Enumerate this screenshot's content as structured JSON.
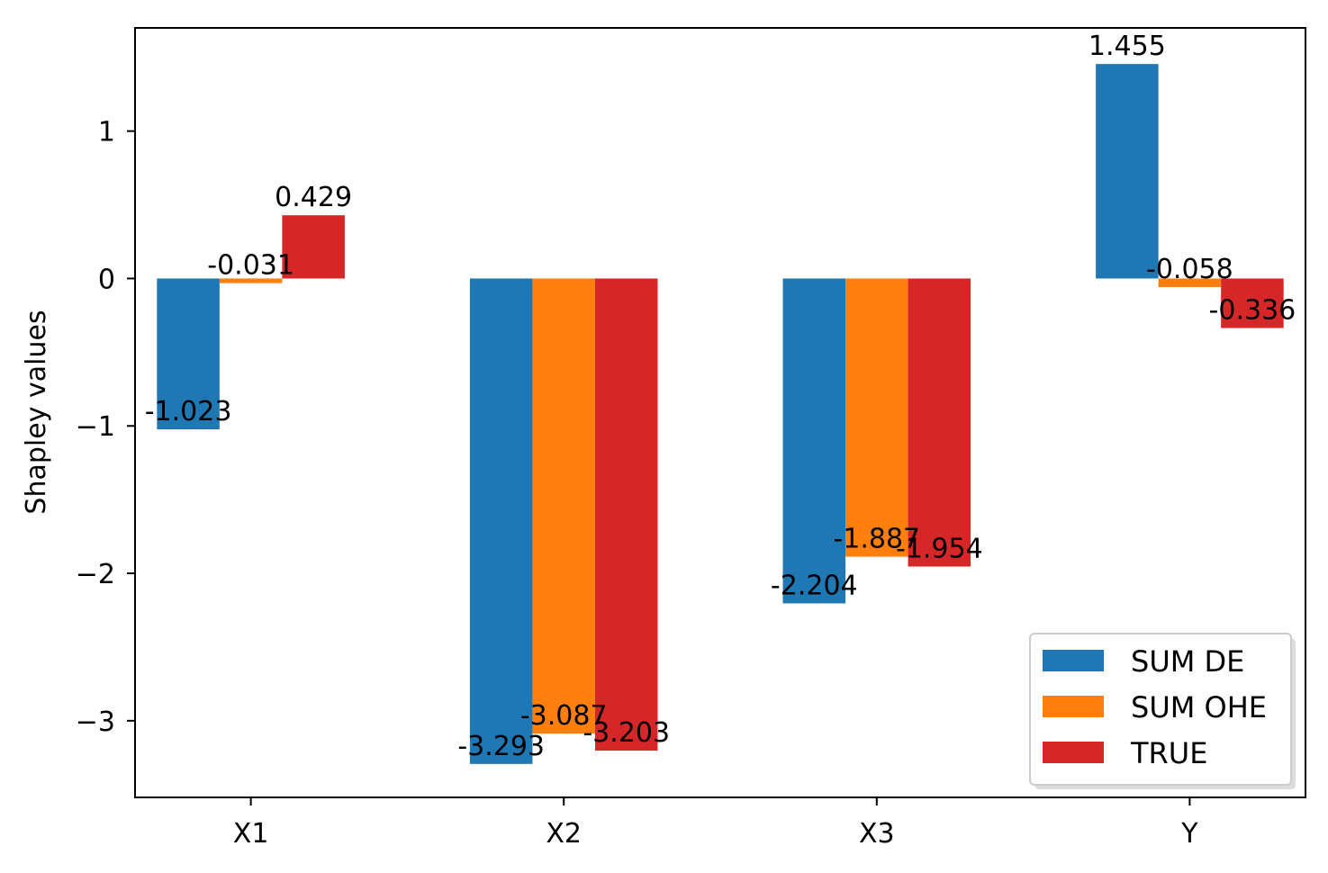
{
  "chart_data": {
    "type": "bar",
    "title": "",
    "xlabel": "",
    "ylabel": "Shapley values",
    "categories": [
      "X1",
      "X2",
      "X3",
      "Y"
    ],
    "series": [
      {
        "name": "SUM DE",
        "color": "#1f77b4",
        "values": [
          -1.023,
          -3.293,
          -2.204,
          1.455
        ],
        "labels": [
          "-1.023",
          "-3.293",
          "-2.204",
          "1.455"
        ]
      },
      {
        "name": "SUM OHE",
        "color": "#ff7f0e",
        "values": [
          -0.031,
          -3.087,
          -1.887,
          -0.058
        ],
        "labels": [
          "-0.031",
          "-3.087",
          "-1.887",
          "-0.058"
        ]
      },
      {
        "name": "TRUE",
        "color": "#d62728",
        "values": [
          0.429,
          -3.203,
          -1.954,
          -0.336
        ],
        "labels": [
          "0.429",
          "-3.203",
          "-1.954",
          "-0.336"
        ]
      }
    ],
    "ylim": [
      -3.52,
      1.7
    ],
    "yticks": [
      1,
      0,
      -1,
      -2,
      -3
    ],
    "ytick_labels": [
      "1",
      "0",
      "−1",
      "−2",
      "−3"
    ],
    "legend_placement": "lower right",
    "grid": false
  }
}
